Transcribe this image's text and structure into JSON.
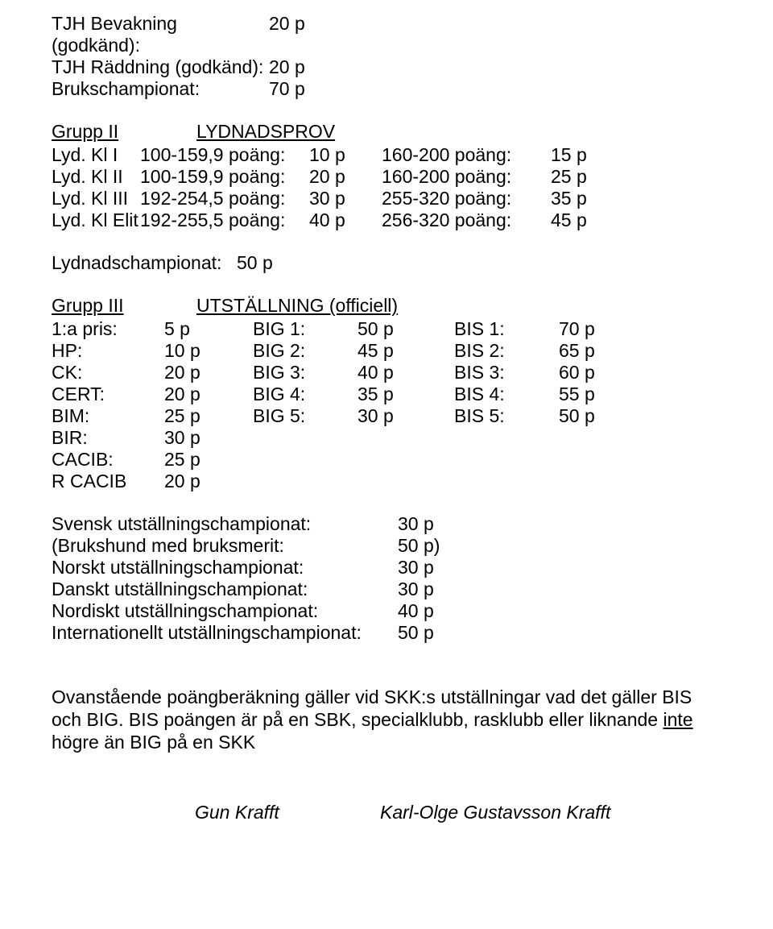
{
  "colors": {
    "background": "#ffffff",
    "text": "#000000"
  },
  "font_family": "Arial",
  "top_lines": [
    {
      "label": "TJH Bevakning (godkänd):",
      "pts": "20 p"
    },
    {
      "label": "TJH Räddning (godkänd):",
      "pts": "20 p"
    },
    {
      "label": "Brukschampionat:",
      "pts": "70 p"
    }
  ],
  "grupp2": {
    "group_label": "Grupp II",
    "title": "LYDNADSPROV",
    "rows": [
      {
        "kl": "Lyd. Kl I",
        "r1": "100-159,9 poäng:",
        "p1": "10 p",
        "r2": "160-200 poäng:",
        "p2": "15 p"
      },
      {
        "kl": "Lyd. Kl II",
        "r1": "100-159,9 poäng:",
        "p1": "20 p",
        "r2": "160-200 poäng:",
        "p2": "25 p"
      },
      {
        "kl": "Lyd. Kl III",
        "r1": "192-254,5 poäng:",
        "p1": "30 p",
        "r2": "255-320 poäng:",
        "p2": "35 p"
      },
      {
        "kl": "Lyd. Kl Elit",
        "r1": "192-255,5 poäng:",
        "p1": "40 p",
        "r2": "256-320 poäng:",
        "p2": "45 p"
      }
    ],
    "lydnadschampionat_label": "Lydnadschampionat:",
    "lydnadschampionat_pts": "50 p"
  },
  "grupp3": {
    "group_label": "Grupp III",
    "title": "UTSTÄLLNING (officiell)",
    "rows": [
      {
        "c1": "1:a pris:",
        "c2": "5 p",
        "c3": "BIG 1:",
        "c4": "50 p",
        "c5": "BIS 1:",
        "c6": "70 p"
      },
      {
        "c1": "HP:",
        "c2": "10 p",
        "c3": "BIG 2:",
        "c4": "45 p",
        "c5": "BIS 2:",
        "c6": "65 p"
      },
      {
        "c1": "CK:",
        "c2": "20 p",
        "c3": "BIG 3:",
        "c4": "40 p",
        "c5": "BIS 3:",
        "c6": "60 p"
      },
      {
        "c1": "CERT:",
        "c2": "20 p",
        "c3": "BIG 4:",
        "c4": "35 p",
        "c5": "BIS 4:",
        "c6": "55 p"
      },
      {
        "c1": "BIM:",
        "c2": "25 p",
        "c3": "BIG 5:",
        "c4": "30 p",
        "c5": "BIS 5:",
        "c6": "50 p"
      },
      {
        "c1": "BIR:",
        "c2": "30 p",
        "c3": "",
        "c4": "",
        "c5": "",
        "c6": ""
      },
      {
        "c1": "CACIB:",
        "c2": "25 p",
        "c3": "",
        "c4": "",
        "c5": "",
        "c6": ""
      },
      {
        "c1": "R CACIB",
        "c2": "20 p",
        "c3": "",
        "c4": "",
        "c5": "",
        "c6": ""
      }
    ]
  },
  "championships": [
    {
      "label": "Svensk utställningschampionat:",
      "pts": "30 p"
    },
    {
      "label": "(Brukshund med bruksmerit:",
      "pts": "50 p)"
    },
    {
      "label": "Norskt utställningschampionat:",
      "pts": "30 p"
    },
    {
      "label": "Danskt utställningschampionat:",
      "pts": "30 p"
    },
    {
      "label": "Nordiskt utställningschampionat:",
      "pts": "40 p"
    },
    {
      "label": "Internationellt utställningschampionat:",
      "pts": "50 p"
    }
  ],
  "note": {
    "pre": "Ovanstående poängberäkning gäller vid SKK:s utställningar vad det gäller BIS och BIG. BIS poängen är på en SBK, specialklubb, rasklubb eller liknande ",
    "underlined": "inte",
    "post": " högre än BIG på en SKK"
  },
  "signatures": {
    "left": "Gun Krafft",
    "right": "Karl-Olge Gustavsson Krafft"
  }
}
